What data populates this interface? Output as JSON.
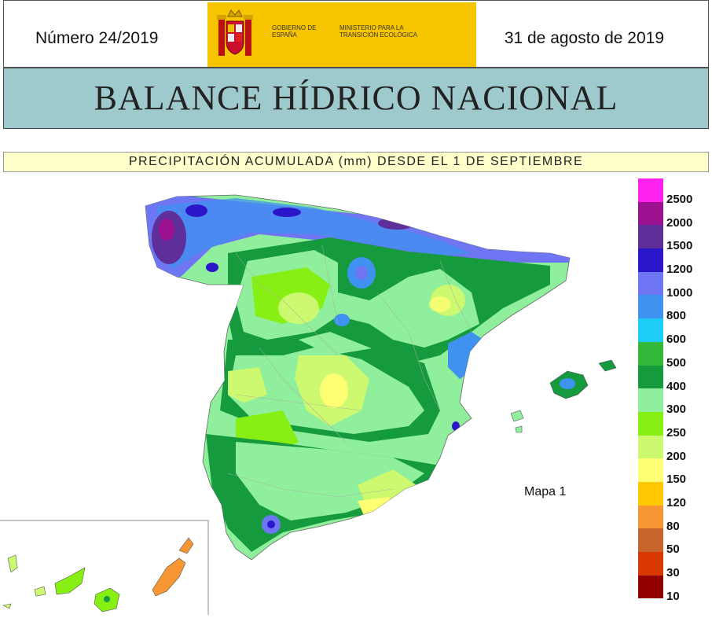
{
  "header": {
    "issue": "Número 24/2019",
    "date": "31 de agosto de 2019",
    "logo_gov_text": "GOBIERNO DE ESPAÑA",
    "logo_ministry_text": "MINISTERIO PARA LA TRANSICIÓN ECOLÓGICA"
  },
  "title": "BALANCE HÍDRICO NACIONAL",
  "subtitle": "PRECIPITACIÓN ACUMULADA (mm) DESDE EL 1 DE SEPTIEMBRE",
  "map_label": "Mapa 1",
  "legend": {
    "colors": [
      "#ff22ee",
      "#9c118f",
      "#5e2f9a",
      "#2b17c9",
      "#6e76f4",
      "#3f92f0",
      "#1dcdf6",
      "#33b83a",
      "#169a3e",
      "#8fef9c",
      "#88ef14",
      "#ccf970",
      "#ffff73",
      "#ffc800",
      "#f79632",
      "#c8652d",
      "#d93800",
      "#920000"
    ],
    "labels": [
      "2500",
      "2000",
      "1500",
      "1200",
      "1000",
      "800",
      "600",
      "500",
      "400",
      "300",
      "250",
      "200",
      "150",
      "120",
      "80",
      "50",
      "30",
      "10"
    ]
  }
}
